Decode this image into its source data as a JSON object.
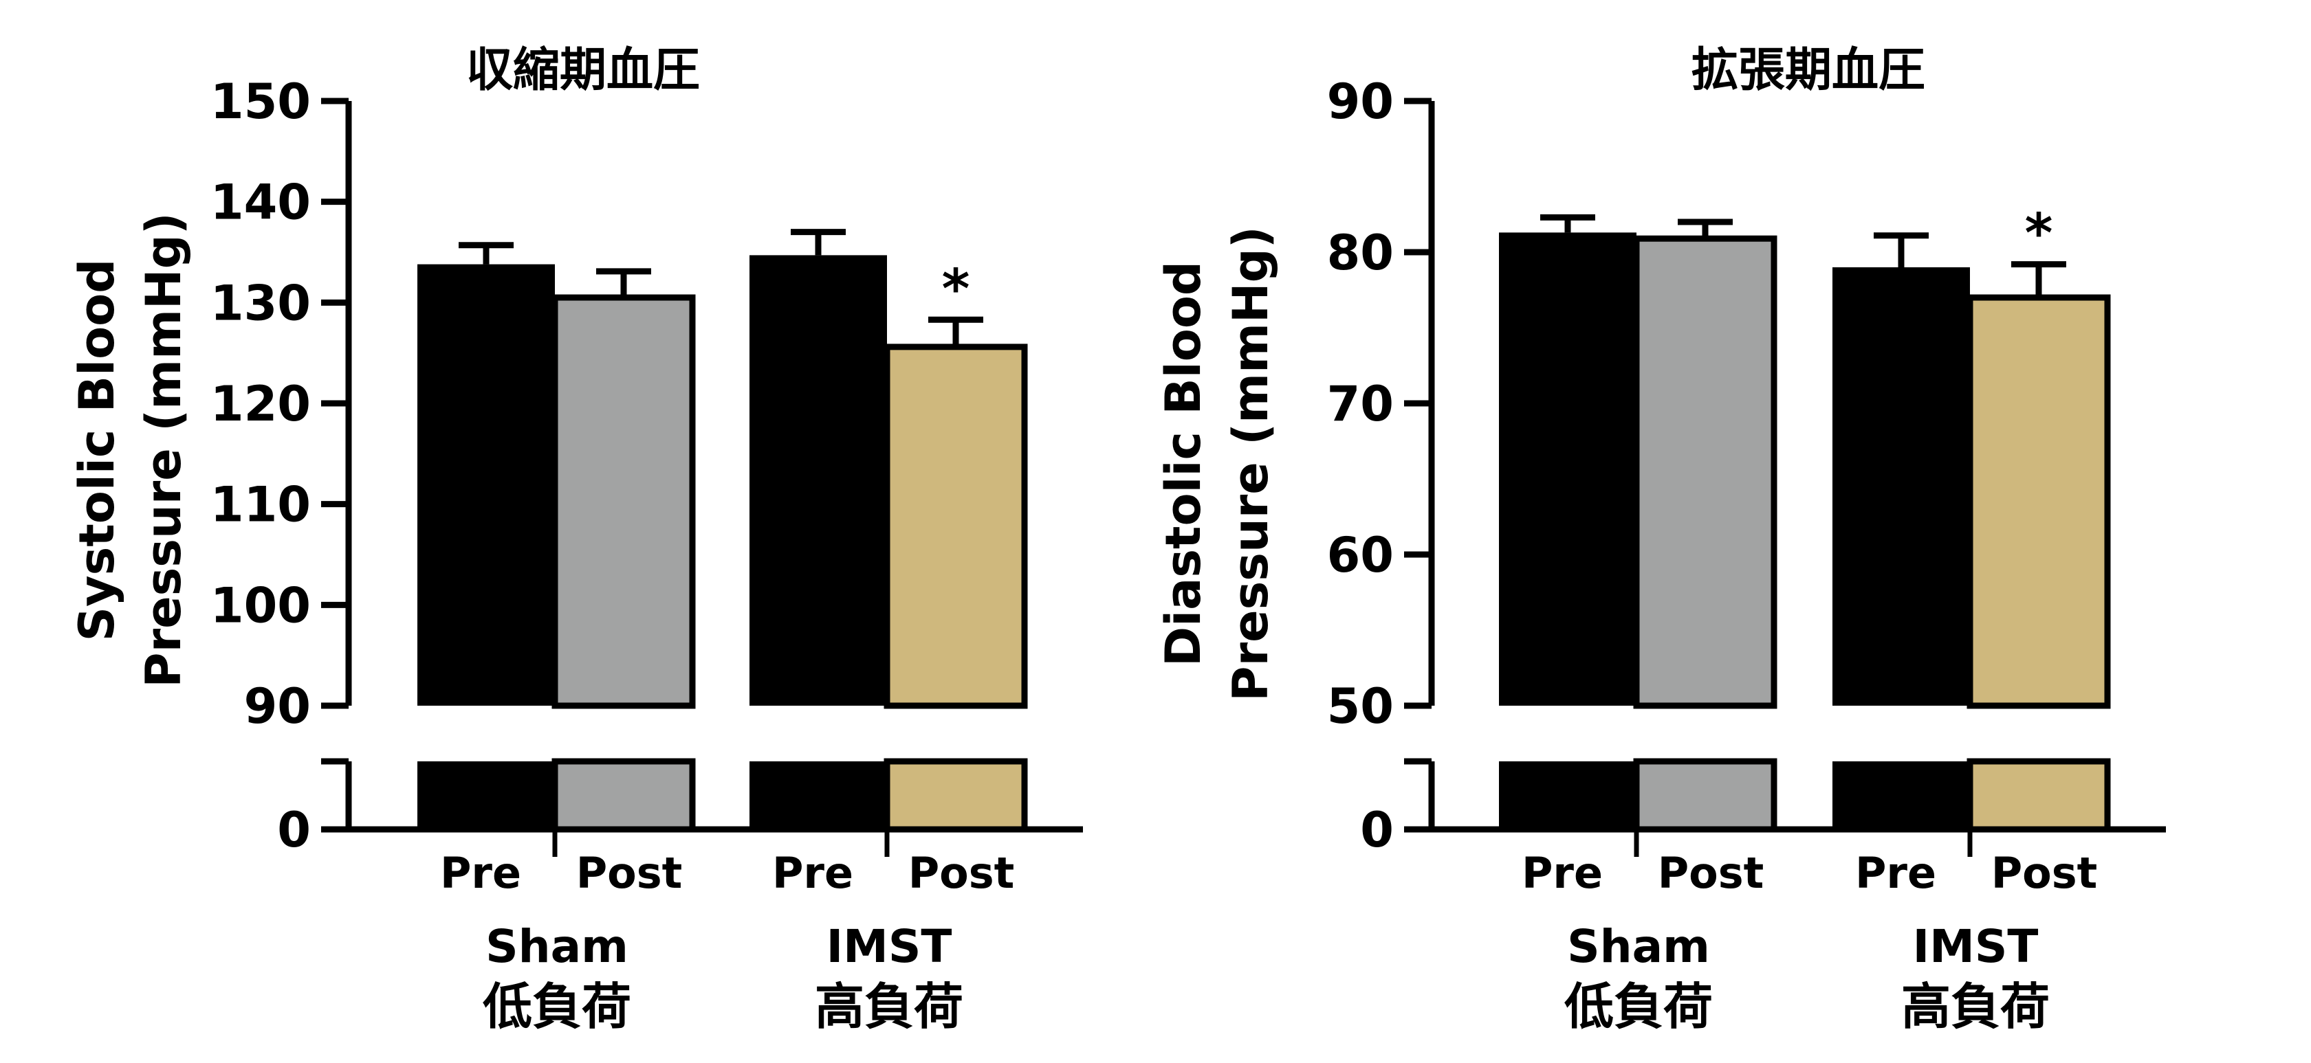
{
  "colors": {
    "pre": "#000000",
    "sham_post": "#a2a3a3",
    "imst_post": "#cfb87d",
    "axis": "#000000"
  },
  "chart_data": [
    {
      "type": "bar",
      "title": "収縮期血圧",
      "ylabel_line1": "Systolic Blood",
      "ylabel_line2": "Pressure (mmHg)",
      "ylim": [
        90,
        150
      ],
      "yticks": [
        "150",
        "140",
        "130",
        "120",
        "110",
        "100",
        "90"
      ],
      "ytick_values": [
        150,
        140,
        130,
        120,
        110,
        100,
        90
      ],
      "broken_axis_bottom_label": "0",
      "x_tick_labels": [
        "Pre",
        "Post",
        "Pre",
        "Post"
      ],
      "groups": [
        {
          "name": "Sham",
          "sub": "低負荷"
        },
        {
          "name": "IMST",
          "sub": "高負荷"
        }
      ],
      "bars": [
        {
          "group": "Sham",
          "label": "Pre",
          "value": 133.8,
          "error": 1.9,
          "color": "#000000"
        },
        {
          "group": "Sham",
          "label": "Post",
          "value": 130.5,
          "error": 2.6,
          "color": "#a2a3a3"
        },
        {
          "group": "IMST",
          "label": "Pre",
          "value": 134.7,
          "error": 2.3,
          "color": "#000000"
        },
        {
          "group": "IMST",
          "label": "Post",
          "value": 125.6,
          "error": 2.7,
          "color": "#cfb87d",
          "annotation": "*"
        }
      ]
    },
    {
      "type": "bar",
      "title": "拡張期血圧",
      "ylabel_line1": "Diastolic Blood",
      "ylabel_line2": "Pressure (mmHg)",
      "ylim": [
        50,
        90
      ],
      "yticks": [
        "90",
        "80",
        "70",
        "60",
        "50"
      ],
      "ytick_values": [
        90,
        80,
        70,
        60,
        50
      ],
      "broken_axis_bottom_label": "0",
      "x_tick_labels": [
        "Pre",
        "Post",
        "Pre",
        "Post"
      ],
      "groups": [
        {
          "name": "Sham",
          "sub": "低負荷"
        },
        {
          "name": "IMST",
          "sub": "高負荷"
        }
      ],
      "bars": [
        {
          "group": "Sham",
          "label": "Pre",
          "value": 81.3,
          "error": 1.0,
          "color": "#000000"
        },
        {
          "group": "Sham",
          "label": "Post",
          "value": 80.9,
          "error": 1.1,
          "color": "#a2a3a3"
        },
        {
          "group": "IMST",
          "label": "Pre",
          "value": 79.0,
          "error": 2.1,
          "color": "#000000"
        },
        {
          "group": "IMST",
          "label": "Post",
          "value": 77.0,
          "error": 2.2,
          "color": "#cfb87d",
          "annotation": "*"
        }
      ]
    }
  ]
}
